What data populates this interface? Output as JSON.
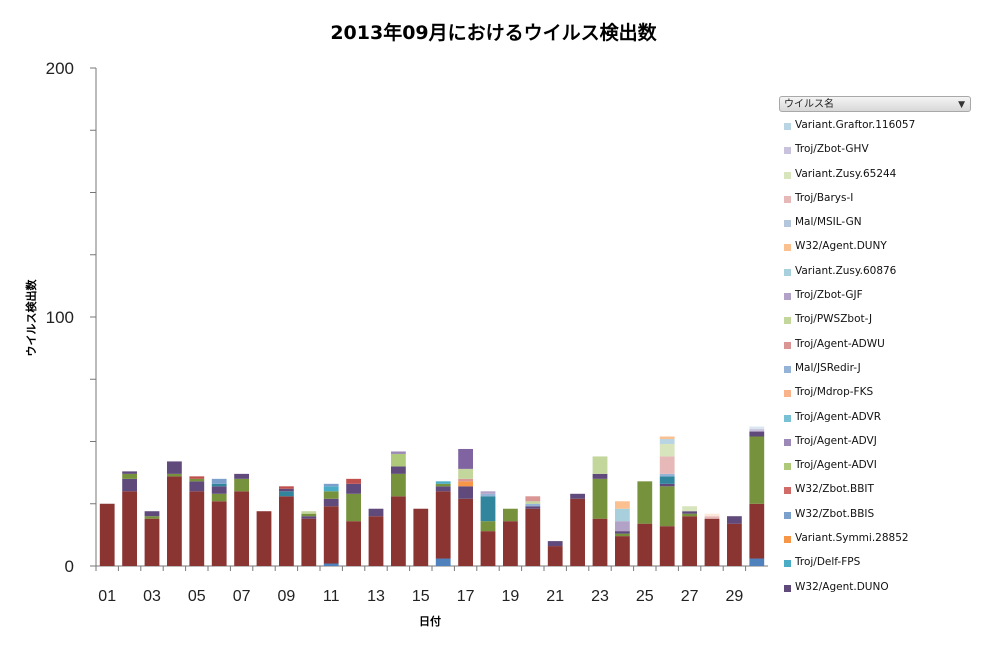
{
  "chart_data": {
    "type": "bar",
    "stacked": true,
    "title": "2013年09月におけるウイルス検出数",
    "xlabel": "日付",
    "ylabel": "ウイルス検出数",
    "ylim": [
      0,
      200
    ],
    "y_ticks": [
      0,
      100,
      200
    ],
    "x_tick_labels": [
      "01",
      "03",
      "05",
      "07",
      "09",
      "11",
      "13",
      "15",
      "17",
      "19",
      "21",
      "23",
      "25",
      "27",
      "29"
    ],
    "categories": [
      "01",
      "02",
      "03",
      "04",
      "05",
      "06",
      "07",
      "08",
      "09",
      "10",
      "11",
      "12",
      "13",
      "14",
      "15",
      "16",
      "17",
      "18",
      "19",
      "20",
      "21",
      "22",
      "23",
      "24",
      "25",
      "26",
      "27",
      "28",
      "29",
      "30"
    ],
    "legend_title": "ウイルス名",
    "legend_position": "right",
    "series": [
      {
        "name": "Variant.Graftor.116057",
        "color": "#b9d5e4",
        "values": [
          0,
          0,
          0,
          0,
          0,
          0,
          0,
          0,
          0,
          0,
          0,
          0,
          0,
          0,
          0,
          0,
          0,
          0,
          0,
          0,
          0,
          0,
          0,
          0,
          0,
          0,
          0,
          0,
          0,
          0
        ]
      },
      {
        "name": "Troj/Zbot-GHV",
        "color": "#c8c2dc",
        "values": [
          0,
          0,
          0,
          0,
          0,
          0,
          0,
          0,
          0,
          0,
          0,
          0,
          0,
          0,
          0,
          0,
          0,
          0,
          0,
          0,
          0,
          0,
          0,
          0,
          0,
          0,
          0,
          0,
          0,
          0
        ]
      },
      {
        "name": "Variant.Zusy.65244",
        "color": "#d7e4bc",
        "values": [
          0,
          0,
          0,
          0,
          0,
          0,
          0,
          0,
          0,
          0,
          0,
          0,
          0,
          0,
          0,
          0,
          0,
          0,
          0,
          0,
          0,
          0,
          0,
          0,
          0,
          0,
          0,
          0,
          0,
          0
        ]
      },
      {
        "name": "Troj/Barys-I",
        "color": "#e6b9b8",
        "values": [
          0,
          0,
          0,
          0,
          0,
          0,
          0,
          0,
          0,
          0,
          0,
          0,
          0,
          0,
          0,
          0,
          0,
          0,
          0,
          0,
          0,
          0,
          0,
          0,
          0,
          0,
          0,
          0,
          0,
          0
        ]
      },
      {
        "name": "Mal/MSIL-GN",
        "color": "#b4c6dc",
        "values": [
          0,
          0,
          0,
          0,
          0,
          0,
          0,
          0,
          0,
          0,
          0,
          0,
          0,
          0,
          0,
          0,
          0,
          0,
          0,
          0,
          0,
          0,
          0,
          0,
          0,
          0,
          0,
          0,
          0,
          0
        ]
      },
      {
        "name": "W32/Agent.DUNY",
        "color": "#fac090",
        "values": [
          0,
          0,
          0,
          0,
          0,
          0,
          0,
          0,
          0,
          0,
          0,
          0,
          0,
          0,
          0,
          0,
          0,
          0,
          0,
          0,
          0,
          0,
          0,
          0,
          0,
          0,
          0,
          0,
          0,
          0
        ]
      },
      {
        "name": "Variant.Zusy.60876",
        "color": "#a8d0dc",
        "values": [
          0,
          0,
          0,
          0,
          0,
          0,
          0,
          0,
          0,
          0,
          0,
          0,
          0,
          0,
          0,
          0,
          0,
          0,
          0,
          0,
          0,
          0,
          0,
          0,
          0,
          0,
          0,
          0,
          0,
          0
        ]
      },
      {
        "name": "Troj/Zbot-GJF",
        "color": "#b3a2c7",
        "values": [
          0,
          0,
          0,
          0,
          0,
          0,
          0,
          0,
          0,
          0,
          0,
          0,
          0,
          0,
          0,
          0,
          0,
          0,
          0,
          0,
          0,
          0,
          0,
          0,
          0,
          0,
          0,
          0,
          0,
          0
        ]
      },
      {
        "name": "Troj/PWSZbot-J",
        "color": "#c3d69b",
        "values": [
          0,
          0,
          0,
          0,
          0,
          0,
          0,
          0,
          0,
          0,
          0,
          0,
          0,
          0,
          0,
          0,
          0,
          0,
          0,
          0,
          0,
          0,
          0,
          0,
          0,
          0,
          0,
          0,
          0,
          0
        ]
      },
      {
        "name": "Troj/Agent-ADWU",
        "color": "#d99694",
        "values": [
          0,
          0,
          0,
          0,
          0,
          0,
          0,
          0,
          0,
          0,
          0,
          0,
          0,
          0,
          0,
          0,
          0,
          0,
          0,
          0,
          0,
          0,
          0,
          0,
          0,
          0,
          0,
          0,
          0,
          0
        ]
      },
      {
        "name": "Mal/JSRedir-J",
        "color": "#95b3d7",
        "values": [
          0,
          0,
          0,
          0,
          0,
          0,
          0,
          0,
          0,
          0,
          0,
          0,
          0,
          0,
          0,
          0,
          0,
          0,
          0,
          0,
          0,
          0,
          0,
          0,
          0,
          0,
          0,
          0,
          0,
          0
        ]
      },
      {
        "name": "Troj/Mdrop-FKS",
        "color": "#f9b38a",
        "values": [
          0,
          0,
          0,
          0,
          0,
          0,
          0,
          0,
          0,
          0,
          0,
          0,
          0,
          0,
          0,
          0,
          0,
          0,
          0,
          0,
          0,
          0,
          0,
          0,
          0,
          0,
          0,
          0,
          0,
          0
        ]
      },
      {
        "name": "Troj/Agent-ADVR",
        "color": "#78c0d4",
        "values": [
          0,
          0,
          0,
          0,
          0,
          0,
          0,
          0,
          0,
          0,
          0,
          0,
          0,
          0,
          0,
          0,
          0,
          0,
          0,
          0,
          0,
          0,
          0,
          0,
          0,
          0,
          0,
          0,
          0,
          0
        ]
      },
      {
        "name": "Troj/Agent-ADVJ",
        "color": "#9c89b8",
        "values": [
          0,
          0,
          0,
          0,
          0,
          0,
          0,
          0,
          0,
          0,
          0,
          0,
          0,
          0,
          0,
          0,
          0,
          0,
          0,
          0,
          0,
          0,
          0,
          0,
          0,
          0,
          0,
          0,
          0,
          0
        ]
      },
      {
        "name": "Troj/Agent-ADVI",
        "color": "#afc97a",
        "values": [
          0,
          0,
          0,
          0,
          0,
          0,
          0,
          0,
          0,
          0,
          0,
          0,
          0,
          0,
          0,
          0,
          0,
          0,
          0,
          0,
          0,
          0,
          0,
          0,
          0,
          0,
          0,
          0,
          0,
          0
        ]
      },
      {
        "name": "W32/Zbot.BBIT",
        "color": "#d16b67",
        "values": [
          0,
          0,
          0,
          0,
          0,
          0,
          0,
          0,
          0,
          0,
          0,
          0,
          0,
          0,
          0,
          0,
          0,
          0,
          0,
          0,
          0,
          0,
          0,
          0,
          0,
          0,
          0,
          0,
          0,
          0
        ]
      },
      {
        "name": "W32/Zbot.BBIS",
        "color": "#7ca0cc",
        "values": [
          0,
          0,
          0,
          0,
          0,
          0,
          0,
          0,
          0,
          0,
          0,
          0,
          0,
          0,
          0,
          0,
          0,
          0,
          0,
          0,
          0,
          0,
          0,
          0,
          0,
          0,
          0,
          0,
          0,
          0
        ]
      },
      {
        "name": "Variant.Symmi.28852",
        "color": "#f79646",
        "values": [
          0,
          0,
          0,
          0,
          0,
          0,
          0,
          0,
          0,
          0,
          0,
          0,
          0,
          0,
          0,
          0,
          0,
          0,
          0,
          0,
          0,
          0,
          0,
          0,
          0,
          0,
          0,
          0,
          0,
          0
        ]
      },
      {
        "name": "Troj/Delf-FPS",
        "color": "#4bacc6",
        "values": [
          0,
          0,
          0,
          0,
          0,
          0,
          0,
          0,
          0,
          0,
          0,
          0,
          0,
          0,
          0,
          0,
          0,
          0,
          0,
          0,
          0,
          0,
          0,
          0,
          0,
          0,
          0,
          0,
          0,
          0
        ]
      },
      {
        "name": "W32/Agent.DUNO",
        "color": "#604a7b",
        "values": [
          0,
          0,
          0,
          0,
          0,
          0,
          0,
          0,
          0,
          0,
          0,
          0,
          0,
          0,
          0,
          0,
          0,
          0,
          0,
          0,
          0,
          0,
          0,
          0,
          0,
          0,
          0,
          0,
          0,
          0
        ]
      }
    ],
    "stacks": [
      [
        {
          "v": 25,
          "c": "#8b3533"
        }
      ],
      [
        {
          "v": 30,
          "c": "#8b3533"
        },
        {
          "v": 5,
          "c": "#604a7b"
        },
        {
          "v": 2,
          "c": "#76923c"
        },
        {
          "v": 1,
          "c": "#604a7b"
        }
      ],
      [
        {
          "v": 19,
          "c": "#8b3533"
        },
        {
          "v": 1,
          "c": "#76923c"
        },
        {
          "v": 2,
          "c": "#604a7b"
        }
      ],
      [
        {
          "v": 36,
          "c": "#8b3533"
        },
        {
          "v": 1,
          "c": "#76923c"
        },
        {
          "v": 5,
          "c": "#604a7b"
        }
      ],
      [
        {
          "v": 30,
          "c": "#8b3533"
        },
        {
          "v": 4,
          "c": "#604a7b"
        },
        {
          "v": 1,
          "c": "#76923c"
        },
        {
          "v": 1,
          "c": "#c0504d"
        }
      ],
      [
        {
          "v": 26,
          "c": "#8b3533"
        },
        {
          "v": 3,
          "c": "#76923c"
        },
        {
          "v": 3,
          "c": "#604a7b"
        },
        {
          "v": 1,
          "c": "#31859c"
        },
        {
          "v": 2,
          "c": "#7ca0cc"
        }
      ],
      [
        {
          "v": 30,
          "c": "#8b3533"
        },
        {
          "v": 5,
          "c": "#76923c"
        },
        {
          "v": 2,
          "c": "#604a7b"
        }
      ],
      [
        {
          "v": 22,
          "c": "#8b3533"
        }
      ],
      [
        {
          "v": 28,
          "c": "#8b3533"
        },
        {
          "v": 2,
          "c": "#31859c"
        },
        {
          "v": 1,
          "c": "#604a7b"
        },
        {
          "v": 1,
          "c": "#c0504d"
        }
      ],
      [
        {
          "v": 19,
          "c": "#8b3533"
        },
        {
          "v": 1,
          "c": "#604a7b"
        },
        {
          "v": 1,
          "c": "#76923c"
        },
        {
          "v": 1,
          "c": "#c3d69b"
        }
      ],
      [
        {
          "v": 1,
          "c": "#4f81bd"
        },
        {
          "v": 23,
          "c": "#8b3533"
        },
        {
          "v": 3,
          "c": "#604a7b"
        },
        {
          "v": 3,
          "c": "#76923c"
        },
        {
          "v": 2,
          "c": "#4bacc6"
        },
        {
          "v": 1,
          "c": "#7ca0cc"
        }
      ],
      [
        {
          "v": 18,
          "c": "#8b3533"
        },
        {
          "v": 11,
          "c": "#76923c"
        },
        {
          "v": 4,
          "c": "#604a7b"
        },
        {
          "v": 2,
          "c": "#c0504d"
        }
      ],
      [
        {
          "v": 20,
          "c": "#8b3533"
        },
        {
          "v": 3,
          "c": "#604a7b"
        }
      ],
      [
        {
          "v": 28,
          "c": "#8b3533"
        },
        {
          "v": 9,
          "c": "#76923c"
        },
        {
          "v": 3,
          "c": "#604a7b"
        },
        {
          "v": 5,
          "c": "#afc97a"
        },
        {
          "v": 1,
          "c": "#9c89b8"
        }
      ],
      [
        {
          "v": 23,
          "c": "#8b3533"
        }
      ],
      [
        {
          "v": 3,
          "c": "#4f81bd"
        },
        {
          "v": 27,
          "c": "#8b3533"
        },
        {
          "v": 2,
          "c": "#604a7b"
        },
        {
          "v": 1,
          "c": "#76923c"
        },
        {
          "v": 1,
          "c": "#4bacc6"
        }
      ],
      [
        {
          "v": 27,
          "c": "#8b3533"
        },
        {
          "v": 5,
          "c": "#604a7b"
        },
        {
          "v": 2,
          "c": "#f79646"
        },
        {
          "v": 1,
          "c": "#d99694"
        },
        {
          "v": 4,
          "c": "#c3d69b"
        },
        {
          "v": 8,
          "c": "#8064a2"
        }
      ],
      [
        {
          "v": 14,
          "c": "#8b3533"
        },
        {
          "v": 4,
          "c": "#76923c"
        },
        {
          "v": 10,
          "c": "#31859c"
        },
        {
          "v": 1,
          "c": "#95b3d7"
        },
        {
          "v": 1,
          "c": "#b3a2c7"
        }
      ],
      [
        {
          "v": 18,
          "c": "#8b3533"
        },
        {
          "v": 5,
          "c": "#76923c"
        }
      ],
      [
        {
          "v": 23,
          "c": "#8b3533"
        },
        {
          "v": 1,
          "c": "#604a7b"
        },
        {
          "v": 1,
          "c": "#95b3d7"
        },
        {
          "v": 1,
          "c": "#c3d69b"
        },
        {
          "v": 2,
          "c": "#d99694"
        }
      ],
      [
        {
          "v": 8,
          "c": "#8b3533"
        },
        {
          "v": 2,
          "c": "#604a7b"
        }
      ],
      [
        {
          "v": 27,
          "c": "#8b3533"
        },
        {
          "v": 2,
          "c": "#604a7b"
        }
      ],
      [
        {
          "v": 19,
          "c": "#8b3533"
        },
        {
          "v": 16,
          "c": "#76923c"
        },
        {
          "v": 2,
          "c": "#604a7b"
        },
        {
          "v": 7,
          "c": "#c3d69b"
        }
      ],
      [
        {
          "v": 12,
          "c": "#8b3533"
        },
        {
          "v": 1,
          "c": "#76923c"
        },
        {
          "v": 1,
          "c": "#604a7b"
        },
        {
          "v": 4,
          "c": "#b3a2c7"
        },
        {
          "v": 5,
          "c": "#a8d0dc"
        },
        {
          "v": 3,
          "c": "#fac090"
        }
      ],
      [
        {
          "v": 17,
          "c": "#8b3533"
        },
        {
          "v": 17,
          "c": "#76923c"
        }
      ],
      [
        {
          "v": 16,
          "c": "#8b3533"
        },
        {
          "v": 16,
          "c": "#76923c"
        },
        {
          "v": 1,
          "c": "#604a7b"
        },
        {
          "v": 3,
          "c": "#31859c"
        },
        {
          "v": 1,
          "c": "#95b3d7"
        },
        {
          "v": 7,
          "c": "#e6b9b8"
        },
        {
          "v": 5,
          "c": "#d7e4bc"
        },
        {
          "v": 2,
          "c": "#b9d5e4"
        },
        {
          "v": 1,
          "c": "#fac090"
        }
      ],
      [
        {
          "v": 20,
          "c": "#8b3533"
        },
        {
          "v": 1,
          "c": "#76923c"
        },
        {
          "v": 1,
          "c": "#604a7b"
        },
        {
          "v": 2,
          "c": "#d7e4bc"
        }
      ],
      [
        {
          "v": 19,
          "c": "#8b3533"
        },
        {
          "v": 1,
          "c": "#e6b9b8"
        },
        {
          "v": 1,
          "c": "#fde9d9"
        }
      ],
      [
        {
          "v": 17,
          "c": "#8b3533"
        },
        {
          "v": 3,
          "c": "#604a7b"
        }
      ],
      [
        {
          "v": 3,
          "c": "#4f81bd"
        },
        {
          "v": 22,
          "c": "#8b3533"
        },
        {
          "v": 27,
          "c": "#76923c"
        },
        {
          "v": 2,
          "c": "#604a7b"
        },
        {
          "v": 1,
          "c": "#c8c2dc"
        },
        {
          "v": 1,
          "c": "#dbe5f1"
        }
      ]
    ]
  }
}
